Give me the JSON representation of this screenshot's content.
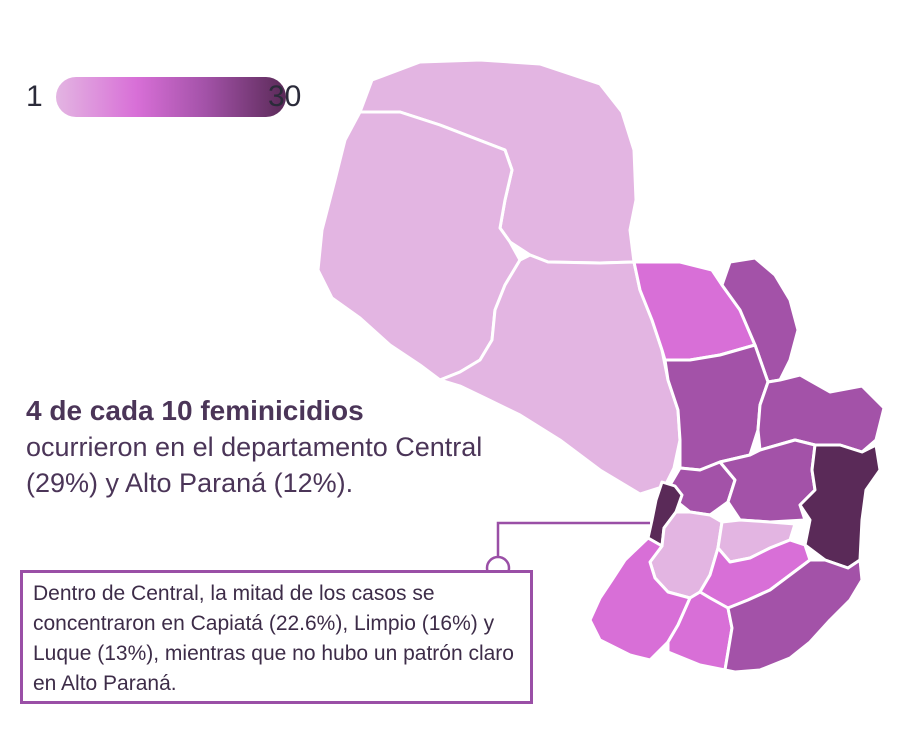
{
  "legend": {
    "min": "1",
    "max": "30"
  },
  "headline": {
    "bold": "4 de cada 10 feminicidios",
    "rest": "ocurrieron en el departamento Central (29%) y Alto Paraná (12%)."
  },
  "callout": {
    "text": "Dentro de Central, la mitad de los casos se concentraron en Capiatá (22.6%), Limpio (16%) y Luque (13%), mientras que no hubo un patrón claro en Alto Paraná."
  },
  "colors": {
    "scale_low": "#e3b5e2",
    "scale_mid": "#d86fd7",
    "scale_high": "#a352a8",
    "scale_max": "#5a2a58",
    "accent": "#9a4fa6"
  },
  "map": {
    "regions": [
      {
        "id": "alto-paraguay",
        "level": "low"
      },
      {
        "id": "boqueron",
        "level": "low"
      },
      {
        "id": "presidente-hayes",
        "level": "low"
      },
      {
        "id": "concepcion",
        "level": "mid"
      },
      {
        "id": "amambay",
        "level": "high"
      },
      {
        "id": "san-pedro",
        "level": "high"
      },
      {
        "id": "canindeyu",
        "level": "high"
      },
      {
        "id": "cordillera",
        "level": "high"
      },
      {
        "id": "caaguazu",
        "level": "high"
      },
      {
        "id": "alto-parana",
        "level": "max"
      },
      {
        "id": "central",
        "level": "max"
      },
      {
        "id": "paraguari",
        "level": "low"
      },
      {
        "id": "guaira",
        "level": "low"
      },
      {
        "id": "caazapa",
        "level": "mid"
      },
      {
        "id": "neembucu",
        "level": "mid"
      },
      {
        "id": "misiones",
        "level": "mid"
      },
      {
        "id": "itapua",
        "level": "high"
      }
    ]
  }
}
